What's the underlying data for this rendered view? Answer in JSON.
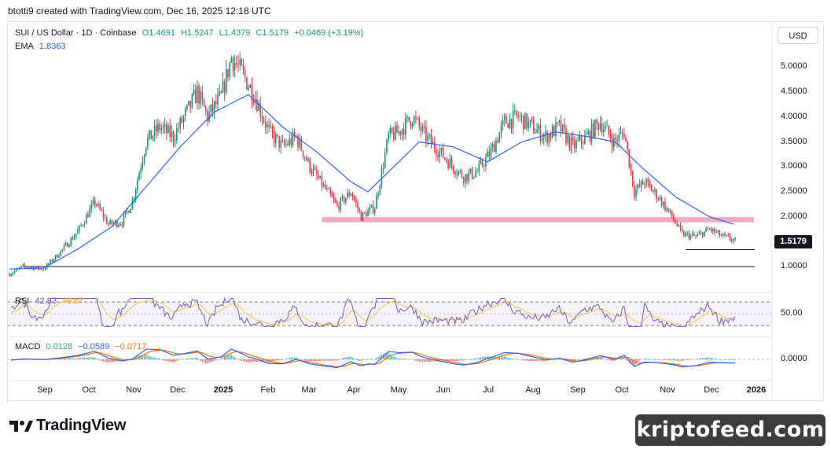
{
  "header": {
    "credit": "btotti9 created with TradingView.com, Dec 16, 2025 12:18 UTC"
  },
  "toolbar": {
    "currency": "USD"
  },
  "legend": {
    "symbol": "SUI / US Dollar · 1D · Coinbase",
    "open": "O1.4691",
    "high": "H1.5247",
    "low": "L1.4379",
    "close": "C1.5179",
    "change": "+0.0469 (+3.19%)",
    "ema_label": "EMA",
    "ema_value": "1.8363",
    "rsi_label": "RSI",
    "rsi_value": "42.83",
    "rsi_ma": "46.87",
    "macd_label": "MACD",
    "macd_hist": "0.0128",
    "macd_line": "−0.0589",
    "macd_signal": "−0.0717"
  },
  "brand": {
    "name": "TradingView"
  },
  "watermark": {
    "text": "kriptofeed.com"
  },
  "colors": {
    "up": "#089981",
    "down": "#f23645",
    "ema": "#2962ff",
    "rsi": "#7e57c2",
    "rsi_ma": "#f7c948",
    "macd": "#2962ff",
    "signal": "#ff6d00",
    "support_zone": "#f48fb1"
  },
  "chart_data": {
    "type": "candlestick",
    "title": "SUI / US Dollar · 1D · Coinbase",
    "y_ticks": [
      "5.0000",
      "4.5000",
      "4.0000",
      "3.5000",
      "3.0000",
      "2.5000",
      "2.0000",
      "1.0000"
    ],
    "ylim": [
      0.6,
      5.4
    ],
    "current_price": "1.5179",
    "x_ticks": [
      "Sep",
      "Oct",
      "Nov",
      "Dec",
      "2025",
      "Feb",
      "Mar",
      "Apr",
      "May",
      "Jun",
      "Jul",
      "Aug",
      "Sep",
      "Oct",
      "Nov",
      "Dec",
      "2026"
    ],
    "close_path": [
      [
        0,
        0.85
      ],
      [
        8,
        1.0
      ],
      [
        20,
        0.95
      ],
      [
        30,
        1.3
      ],
      [
        40,
        1.7
      ],
      [
        50,
        2.3
      ],
      [
        58,
        1.85
      ],
      [
        66,
        1.9
      ],
      [
        72,
        2.3
      ],
      [
        80,
        3.5
      ],
      [
        88,
        3.8
      ],
      [
        96,
        3.6
      ],
      [
        104,
        4.1
      ],
      [
        110,
        4.5
      ],
      [
        116,
        4.0
      ],
      [
        124,
        4.4
      ],
      [
        130,
        5.2
      ],
      [
        136,
        4.9
      ],
      [
        144,
        4.4
      ],
      [
        152,
        3.7
      ],
      [
        160,
        3.4
      ],
      [
        168,
        3.6
      ],
      [
        176,
        3.0
      ],
      [
        184,
        2.6
      ],
      [
        192,
        2.2
      ],
      [
        200,
        2.5
      ],
      [
        206,
        2.0
      ],
      [
        214,
        2.2
      ],
      [
        222,
        3.6
      ],
      [
        228,
        3.7
      ],
      [
        236,
        4.0
      ],
      [
        244,
        3.6
      ],
      [
        252,
        3.3
      ],
      [
        260,
        3.0
      ],
      [
        266,
        2.8
      ],
      [
        274,
        2.9
      ],
      [
        282,
        3.3
      ],
      [
        290,
        3.9
      ],
      [
        298,
        4.0
      ],
      [
        306,
        3.8
      ],
      [
        314,
        3.6
      ],
      [
        322,
        3.8
      ],
      [
        330,
        3.4
      ],
      [
        338,
        3.6
      ],
      [
        346,
        3.9
      ],
      [
        354,
        3.5
      ],
      [
        360,
        3.7
      ],
      [
        366,
        2.5
      ],
      [
        372,
        2.7
      ],
      [
        380,
        2.4
      ],
      [
        388,
        2.0
      ],
      [
        394,
        1.65
      ],
      [
        402,
        1.6
      ],
      [
        410,
        1.75
      ],
      [
        418,
        1.6
      ],
      [
        425,
        1.52
      ]
    ],
    "ema_path": [
      [
        0,
        0.95
      ],
      [
        20,
        0.97
      ],
      [
        40,
        1.35
      ],
      [
        60,
        1.8
      ],
      [
        80,
        2.6
      ],
      [
        100,
        3.4
      ],
      [
        120,
        4.1
      ],
      [
        140,
        4.45
      ],
      [
        160,
        3.8
      ],
      [
        180,
        3.3
      ],
      [
        200,
        2.7
      ],
      [
        210,
        2.5
      ],
      [
        222,
        2.9
      ],
      [
        240,
        3.5
      ],
      [
        260,
        3.4
      ],
      [
        280,
        3.1
      ],
      [
        300,
        3.5
      ],
      [
        320,
        3.7
      ],
      [
        340,
        3.6
      ],
      [
        355,
        3.5
      ],
      [
        370,
        3.0
      ],
      [
        390,
        2.4
      ],
      [
        410,
        2.0
      ],
      [
        425,
        1.84
      ]
    ],
    "support_zone": [
      1.9,
      1.98
    ],
    "lows_line": 1.34,
    "base_line": 1.0,
    "rsi": {
      "upper": 70,
      "lower": 30,
      "mid": 50,
      "value": 42.83,
      "ma": 46.87,
      "tick": "50.00"
    },
    "macd": {
      "tick": "0.0000",
      "hist": 0.0128,
      "line": -0.0589,
      "signal": -0.0717
    }
  }
}
